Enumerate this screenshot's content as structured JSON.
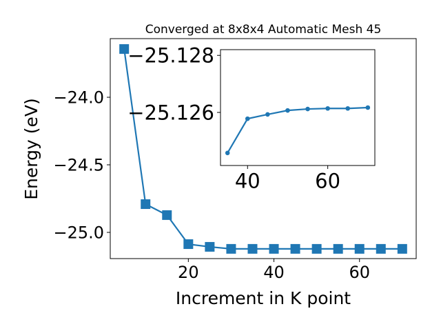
{
  "chart_data": [
    {
      "type": "line",
      "title": "Converged at 8x8x4 Automatic Mesh 45",
      "x_label": "Increment in K point",
      "y_label": "Energy (eV)",
      "x": [
        5,
        10,
        15,
        20,
        25,
        30,
        35,
        40,
        45,
        50,
        55,
        60,
        65,
        70
      ],
      "values": [
        -23.643,
        -24.791,
        -24.872,
        -25.087,
        -25.107,
        -25.122,
        -25.122,
        -25.122,
        -25.122,
        -25.122,
        -25.122,
        -25.122,
        -25.122,
        -25.122
      ],
      "color": "#1f77b4",
      "marker": "square",
      "xlim": [
        1.75,
        73.25
      ],
      "xticks": [
        20,
        40,
        60
      ],
      "ylim": [
        -25.194,
        -23.566
      ],
      "yticks": [
        {
          "value": -25.0,
          "label": "−25.0"
        },
        {
          "value": -24.5,
          "label": "−24.5"
        },
        {
          "value": -24.0,
          "label": "−24.0"
        }
      ]
    },
    {
      "type": "line",
      "x": [
        35,
        40,
        45,
        50,
        55,
        60,
        65,
        70
      ],
      "values": [
        -25.12458,
        -25.12578,
        -25.12593,
        -25.12607,
        -25.12612,
        -25.12614,
        -25.12614,
        -25.12617
      ],
      "color": "#1f77b4",
      "marker": "circle",
      "xlim": [
        33.25,
        71.75
      ],
      "xticks": [
        40,
        60
      ],
      "ylim": [
        -25.12414,
        -25.1282
      ],
      "yticks": [
        {
          "value": -25.126,
          "label": "−25.126"
        },
        {
          "value": -25.128,
          "label": "−25.128"
        }
      ]
    }
  ]
}
